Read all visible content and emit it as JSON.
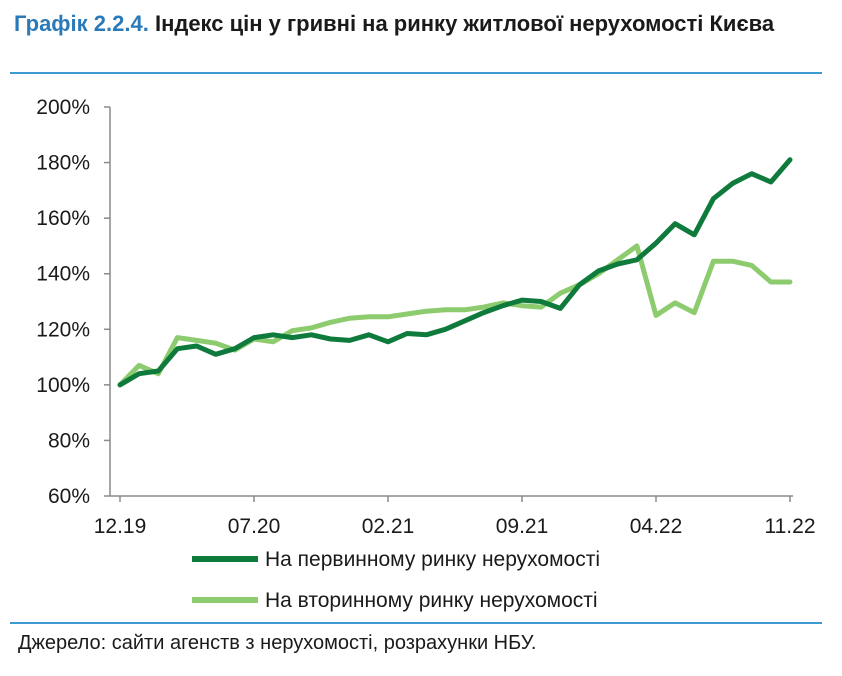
{
  "header": {
    "title_number": "Графік 2.2.4.",
    "title_text": " Індекс цін у гривні на ринку житлової нерухомості Києва"
  },
  "footer": {
    "source": "Джерело: сайти агенств з нерухомості, розрахунки НБУ."
  },
  "chart_data": {
    "type": "line",
    "title": "Індекс цін у гривні на ринку житлової нерухомості Києва",
    "x_ticks": [
      "12.19",
      "07.20",
      "02.21",
      "09.21",
      "04.22",
      "11.22"
    ],
    "x_tick_index": [
      0,
      7,
      14,
      21,
      28,
      35
    ],
    "y_ticks": [
      "60%",
      "80%",
      "100%",
      "120%",
      "140%",
      "160%",
      "180%",
      "200%"
    ],
    "ylim": [
      60,
      200
    ],
    "grid": false,
    "legend_position": "bottom",
    "series": [
      {
        "name": "На первинному ринку нерухомості",
        "color": "#0e7a3c",
        "values": [
          100,
          104,
          105,
          113,
          114,
          111,
          113,
          117,
          118,
          117,
          118,
          116.5,
          116,
          118,
          115.5,
          118.5,
          118,
          120,
          123,
          126,
          128.5,
          130.5,
          130,
          127.5,
          136,
          141,
          143.5,
          145,
          151,
          158,
          154,
          167,
          172.5,
          176,
          173,
          181
        ]
      },
      {
        "name": "На вторинному ринку нерухомості",
        "color": "#8dcc6e",
        "values": [
          100,
          107,
          104,
          117,
          116,
          115,
          112.5,
          116.5,
          115.5,
          119.5,
          120.5,
          122.5,
          124,
          124.5,
          124.5,
          125.5,
          126.5,
          127,
          127,
          128,
          129.5,
          128.5,
          128,
          133,
          136,
          140,
          145,
          150,
          125,
          129.5,
          126,
          144.5,
          144.5,
          143,
          137,
          137
        ]
      }
    ]
  }
}
